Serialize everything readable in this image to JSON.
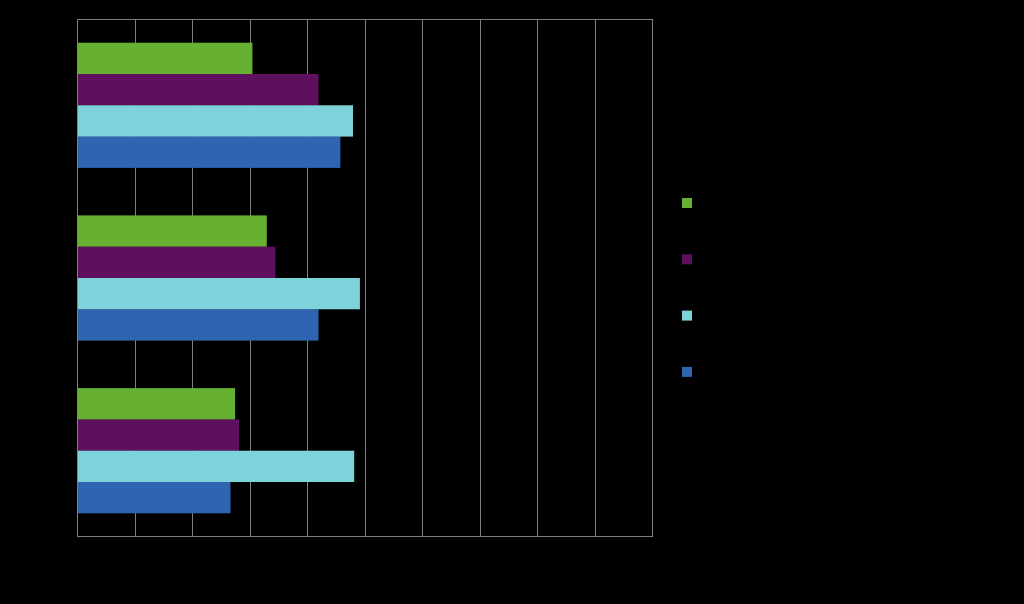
{
  "chart_data": {
    "type": "bar",
    "orientation": "horizontal",
    "categories": [
      "",
      "",
      ""
    ],
    "series": [
      {
        "color": "#66B032",
        "values": [
          3.05,
          3.3,
          2.75
        ]
      },
      {
        "color": "#5E0F5E",
        "values": [
          4.2,
          3.45,
          2.82
        ]
      },
      {
        "color": "#7ED3DA",
        "values": [
          4.8,
          4.92,
          4.82
        ]
      },
      {
        "color": "#2E64B0",
        "values": [
          4.58,
          4.2,
          2.67
        ]
      }
    ],
    "title": "",
    "xlabel": "",
    "ylabel": "",
    "xlim": [
      0,
      10
    ],
    "grid": true,
    "legend_position": "right",
    "colors": {
      "background": "#000000",
      "axes_frame": "#808080",
      "gridline": "#808080"
    }
  }
}
